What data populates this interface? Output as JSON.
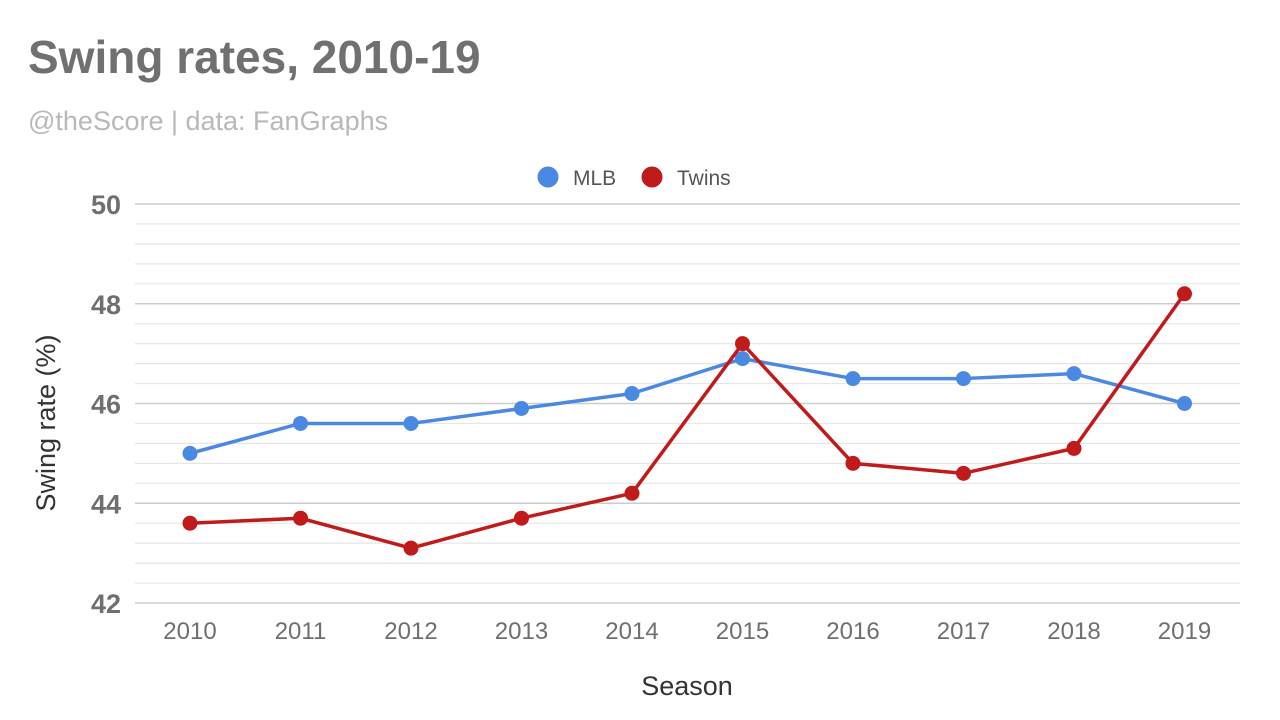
{
  "title": "Swing rates, 2010-19",
  "subtitle": "@theScore | data: FanGraphs",
  "chart_data": {
    "type": "line",
    "title": "Swing rates, 2010-19",
    "xlabel": "Season",
    "ylabel": "Swing rate (%)",
    "categories": [
      "2010",
      "2011",
      "2012",
      "2013",
      "2014",
      "2015",
      "2016",
      "2017",
      "2018",
      "2019"
    ],
    "ylim": [
      42,
      50
    ],
    "yticks": [
      42,
      44,
      46,
      48,
      50
    ],
    "grid": true,
    "legend_position": "top-center",
    "series": [
      {
        "name": "MLB",
        "color": "#4a89e2",
        "values": [
          45.0,
          45.6,
          45.6,
          45.9,
          46.2,
          46.9,
          46.5,
          46.5,
          46.6,
          46.0
        ]
      },
      {
        "name": "Twins",
        "color": "#c11a1a",
        "values": [
          43.6,
          43.7,
          43.1,
          43.7,
          44.2,
          47.2,
          44.8,
          44.6,
          45.1,
          48.2
        ]
      }
    ]
  }
}
